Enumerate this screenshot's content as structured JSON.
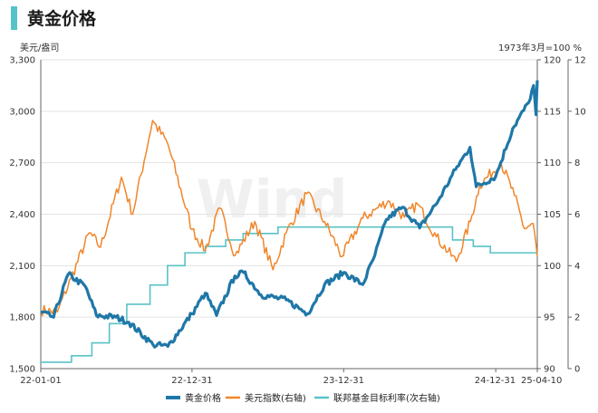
{
  "header": {
    "title": "黄金价格"
  },
  "chart_data": {
    "type": "line",
    "left_unit": "美元/盎司",
    "right_unit": "1973年3月=100 %",
    "x_tick_labels": [
      "22-01-01",
      "22-12-31",
      "23-12-31",
      "24-12-31",
      "25-04-10"
    ],
    "x_range": [
      "2022-01-01",
      "2025-04-10"
    ],
    "y_left": {
      "range": [
        1500,
        3300
      ],
      "ticks": [
        "1,500",
        "1,800",
        "2,100",
        "2,400",
        "2,700",
        "3,000",
        "3,300"
      ]
    },
    "y_right1": {
      "range": [
        90,
        120
      ],
      "ticks": [
        "90",
        "95",
        "100",
        "105",
        "110",
        "115",
        "120"
      ]
    },
    "y_right2": {
      "range": [
        0,
        12
      ],
      "ticks": [
        "0",
        "2",
        "4",
        "6",
        "8",
        "10",
        "12"
      ]
    },
    "grid": "horizontal",
    "legend_position": "bottom",
    "watermark": "Wind",
    "series": [
      {
        "name": "黄金价格",
        "axis": "left",
        "color": "#1f77a8",
        "points": [
          [
            "2022-01-01",
            1829
          ],
          [
            "2022-02-01",
            1800
          ],
          [
            "2022-03-08",
            2050
          ],
          [
            "2022-04-18",
            1980
          ],
          [
            "2022-05-15",
            1810
          ],
          [
            "2022-07-01",
            1800
          ],
          [
            "2022-08-01",
            1770
          ],
          [
            "2022-09-28",
            1640
          ],
          [
            "2022-11-03",
            1630
          ],
          [
            "2022-12-31",
            1820
          ],
          [
            "2023-02-01",
            1940
          ],
          [
            "2023-02-28",
            1810
          ],
          [
            "2023-04-13",
            2040
          ],
          [
            "2023-05-04",
            2060
          ],
          [
            "2023-06-15",
            1930
          ],
          [
            "2023-08-15",
            1900
          ],
          [
            "2023-10-05",
            1820
          ],
          [
            "2023-11-15",
            1990
          ],
          [
            "2023-12-31",
            2060
          ],
          [
            "2024-02-15",
            1990
          ],
          [
            "2024-03-15",
            2160
          ],
          [
            "2024-04-12",
            2370
          ],
          [
            "2024-05-20",
            2440
          ],
          [
            "2024-07-01",
            2320
          ],
          [
            "2024-08-15",
            2480
          ],
          [
            "2024-09-25",
            2660
          ],
          [
            "2024-10-30",
            2790
          ],
          [
            "2024-11-14",
            2560
          ],
          [
            "2024-12-31",
            2620
          ],
          [
            "2025-02-10",
            2900
          ],
          [
            "2025-03-20",
            3050
          ],
          [
            "2025-04-01",
            3150
          ],
          [
            "2025-04-07",
            2980
          ],
          [
            "2025-04-10",
            3180
          ]
        ]
      },
      {
        "name": "美元指数(右轴)",
        "axis": "right1",
        "color": "#f0862a",
        "points": [
          [
            "2022-01-01",
            95.7
          ],
          [
            "2022-02-10",
            95.5
          ],
          [
            "2022-03-15",
            98.8
          ],
          [
            "2022-04-28",
            103.2
          ],
          [
            "2022-05-25",
            101.8
          ],
          [
            "2022-07-14",
            108.6
          ],
          [
            "2022-08-10",
            105.0
          ],
          [
            "2022-09-27",
            114.1
          ],
          [
            "2022-11-03",
            111.8
          ],
          [
            "2022-12-31",
            103.5
          ],
          [
            "2023-02-01",
            101.5
          ],
          [
            "2023-03-08",
            105.6
          ],
          [
            "2023-04-14",
            101.0
          ],
          [
            "2023-05-31",
            104.3
          ],
          [
            "2023-07-14",
            99.6
          ],
          [
            "2023-08-15",
            103.2
          ],
          [
            "2023-10-03",
            107.0
          ],
          [
            "2023-11-15",
            104.3
          ],
          [
            "2023-12-27",
            100.9
          ],
          [
            "2024-02-15",
            104.6
          ],
          [
            "2024-04-16",
            106.3
          ],
          [
            "2024-05-25",
            104.7
          ],
          [
            "2024-06-26",
            106.0
          ],
          [
            "2024-08-10",
            102.8
          ],
          [
            "2024-09-27",
            100.4
          ],
          [
            "2024-10-31",
            104.3
          ],
          [
            "2024-11-22",
            107.8
          ],
          [
            "2025-01-13",
            110.0
          ],
          [
            "2025-02-14",
            106.8
          ],
          [
            "2025-03-10",
            103.6
          ],
          [
            "2025-03-31",
            104.1
          ],
          [
            "2025-04-10",
            100.9
          ]
        ]
      },
      {
        "name": "联邦基金目标利率(次右轴)",
        "axis": "right2",
        "color": "#59c2c6",
        "step": true,
        "points": [
          [
            "2022-01-01",
            0.25
          ],
          [
            "2022-03-16",
            0.5
          ],
          [
            "2022-05-04",
            1.0
          ],
          [
            "2022-06-15",
            1.75
          ],
          [
            "2022-07-27",
            2.5
          ],
          [
            "2022-09-21",
            3.25
          ],
          [
            "2022-11-02",
            4.0
          ],
          [
            "2022-12-14",
            4.5
          ],
          [
            "2023-02-01",
            4.75
          ],
          [
            "2023-03-22",
            5.0
          ],
          [
            "2023-05-03",
            5.25
          ],
          [
            "2023-07-26",
            5.5
          ],
          [
            "2024-09-18",
            5.0
          ],
          [
            "2024-11-07",
            4.75
          ],
          [
            "2024-12-18",
            4.5
          ],
          [
            "2025-04-10",
            4.5
          ]
        ]
      }
    ]
  }
}
